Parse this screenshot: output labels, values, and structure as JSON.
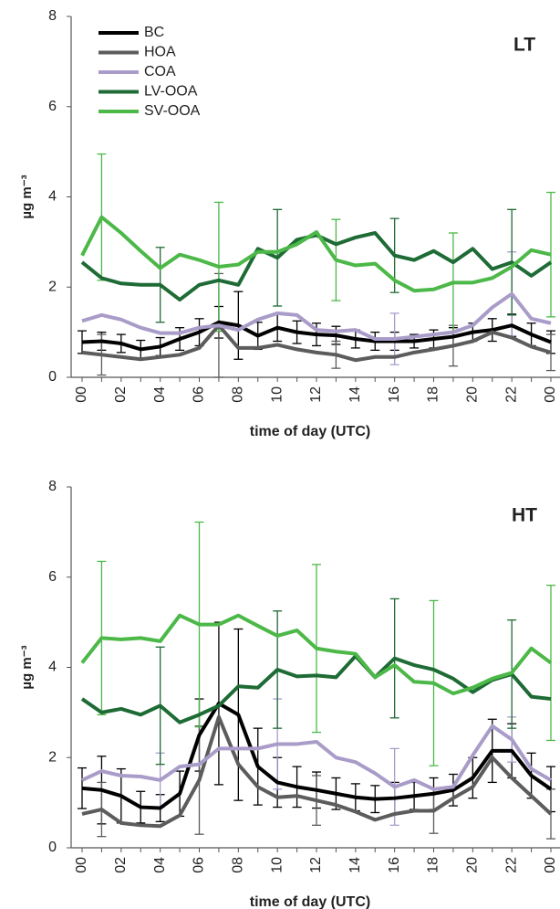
{
  "chart_data": [
    {
      "type": "line",
      "label": "LT",
      "xlabel": "time of day (UTC)",
      "ylabel": "µg m⁻³",
      "legend": true,
      "legend_position": "upper left",
      "categories": [
        "00",
        null,
        "02",
        null,
        "04",
        null,
        "06",
        null,
        "08",
        null,
        "10",
        null,
        "12",
        null,
        "14",
        null,
        "16",
        null,
        "18",
        null,
        "20",
        null,
        "22",
        null,
        "00"
      ],
      "ylim": [
        0,
        8
      ],
      "yticks": [
        0,
        2,
        4,
        6,
        8
      ],
      "series": [
        {
          "name": "BC",
          "color": "#000000",
          "values": [
            0.78,
            0.8,
            0.75,
            0.62,
            0.68,
            0.85,
            1.0,
            1.22,
            1.15,
            0.92,
            1.1,
            1.0,
            0.95,
            0.93,
            0.85,
            0.8,
            0.8,
            0.8,
            0.85,
            0.9,
            1.0,
            1.05,
            1.15,
            0.95,
            0.78
          ],
          "errors": [
            0.25,
            0.2,
            0.2,
            0.2,
            0.2,
            0.25,
            0.3,
            0.35,
            0.75,
            0.3,
            0.3,
            0.25,
            0.25,
            0.2,
            0.2,
            0.2,
            0.2,
            0.15,
            0.2,
            0.2,
            0.2,
            0.25,
            0.25,
            0.25,
            0.25
          ]
        },
        {
          "name": "HOA",
          "color": "#5c5c5c",
          "values": [
            0.55,
            0.5,
            0.45,
            0.4,
            0.45,
            0.5,
            0.65,
            1.15,
            0.65,
            0.65,
            0.72,
            0.62,
            0.55,
            0.5,
            0.38,
            0.45,
            0.45,
            0.55,
            0.62,
            0.7,
            0.8,
            1.0,
            0.88,
            0.68,
            0.55
          ],
          "errors": [
            null,
            0.45,
            null,
            null,
            null,
            null,
            null,
            1.15,
            null,
            null,
            null,
            null,
            null,
            0.3,
            null,
            null,
            null,
            null,
            null,
            0.45,
            null,
            null,
            null,
            null,
            0.4
          ]
        },
        {
          "name": "COA",
          "color": "#a99cc9",
          "values": [
            1.25,
            1.38,
            1.28,
            1.1,
            0.98,
            0.98,
            1.1,
            1.15,
            1.05,
            1.28,
            1.42,
            1.38,
            1.05,
            1.02,
            1.05,
            0.85,
            0.85,
            0.9,
            0.95,
            1.0,
            1.15,
            1.55,
            1.85,
            1.3,
            1.2
          ],
          "errors": [
            null,
            null,
            null,
            null,
            null,
            null,
            null,
            null,
            null,
            null,
            null,
            null,
            null,
            null,
            null,
            null,
            0.57,
            null,
            null,
            null,
            null,
            null,
            0.93,
            null,
            null
          ]
        },
        {
          "name": "LV-OOA",
          "color": "#1e6b35",
          "values": [
            2.55,
            2.2,
            2.08,
            2.05,
            2.05,
            1.72,
            2.05,
            2.15,
            2.05,
            2.85,
            2.65,
            3.05,
            3.15,
            2.95,
            3.1,
            3.2,
            2.7,
            2.6,
            2.8,
            2.55,
            2.85,
            2.4,
            2.55,
            2.25,
            2.55
          ],
          "errors": [
            null,
            null,
            null,
            null,
            0.83,
            null,
            null,
            null,
            null,
            null,
            1.07,
            null,
            null,
            null,
            null,
            null,
            0.82,
            null,
            null,
            null,
            null,
            null,
            1.17,
            null,
            null
          ]
        },
        {
          "name": "SV-OOA",
          "color": "#4cb848",
          "values": [
            2.7,
            3.55,
            3.2,
            2.8,
            2.42,
            2.72,
            2.6,
            2.45,
            2.5,
            2.78,
            2.78,
            2.95,
            3.22,
            2.6,
            2.48,
            2.52,
            2.15,
            1.92,
            1.95,
            2.1,
            2.1,
            2.2,
            2.45,
            2.82,
            2.72
          ],
          "errors": [
            null,
            1.4,
            null,
            null,
            null,
            null,
            null,
            1.43,
            null,
            null,
            null,
            null,
            null,
            0.9,
            null,
            null,
            null,
            null,
            null,
            1.1,
            null,
            null,
            null,
            null,
            1.38
          ]
        }
      ]
    },
    {
      "type": "line",
      "label": "HT",
      "xlabel": "time of day (UTC)",
      "ylabel": "µg m⁻³",
      "legend": false,
      "categories": [
        "00",
        null,
        "02",
        null,
        "04",
        null,
        "06",
        null,
        "08",
        null,
        "10",
        null,
        "12",
        null,
        "14",
        null,
        "16",
        null,
        "18",
        null,
        "20",
        null,
        "22",
        null,
        "00"
      ],
      "ylim": [
        0,
        8
      ],
      "yticks": [
        0,
        2,
        4,
        6,
        8
      ],
      "series": [
        {
          "name": "BC",
          "color": "#000000",
          "values": [
            1.32,
            1.28,
            1.15,
            0.9,
            0.88,
            1.2,
            2.5,
            3.2,
            2.95,
            1.8,
            1.45,
            1.35,
            1.28,
            1.2,
            1.12,
            1.08,
            1.1,
            1.15,
            1.2,
            1.28,
            1.55,
            2.15,
            2.15,
            1.6,
            1.3
          ],
          "errors": [
            0.45,
            0.75,
            0.6,
            0.35,
            0.3,
            0.5,
            0.8,
            1.8,
            1.9,
            0.85,
            0.55,
            0.45,
            0.4,
            0.35,
            0.3,
            0.3,
            0.35,
            0.3,
            0.35,
            0.35,
            0.45,
            0.7,
            0.6,
            0.5,
            0.5
          ]
        },
        {
          "name": "HOA",
          "color": "#5c5c5c",
          "values": [
            0.75,
            0.85,
            0.55,
            0.5,
            0.48,
            0.72,
            1.5,
            2.9,
            1.85,
            1.35,
            1.12,
            1.15,
            1.05,
            0.95,
            0.8,
            0.62,
            0.75,
            0.82,
            0.82,
            1.1,
            1.35,
            2.0,
            1.55,
            1.15,
            0.75
          ],
          "errors": [
            null,
            0.6,
            null,
            null,
            null,
            null,
            1.2,
            null,
            null,
            null,
            null,
            null,
            0.55,
            null,
            null,
            null,
            null,
            null,
            0.5,
            null,
            null,
            null,
            null,
            null,
            0.55
          ]
        },
        {
          "name": "COA",
          "color": "#a99cc9",
          "values": [
            1.5,
            1.7,
            1.6,
            1.58,
            1.5,
            1.8,
            1.85,
            2.2,
            2.2,
            2.2,
            2.3,
            2.3,
            2.35,
            2.0,
            1.9,
            1.65,
            1.35,
            1.5,
            1.3,
            1.35,
            2.05,
            2.7,
            2.4,
            1.75,
            1.5
          ],
          "errors": [
            null,
            null,
            null,
            null,
            0.6,
            null,
            null,
            null,
            null,
            null,
            1.0,
            null,
            null,
            null,
            null,
            null,
            0.85,
            null,
            null,
            null,
            null,
            null,
            0.5,
            null,
            null
          ]
        },
        {
          "name": "LV-OOA",
          "color": "#1e6b35",
          "values": [
            3.3,
            3.0,
            3.08,
            2.95,
            3.15,
            2.78,
            2.95,
            3.15,
            3.58,
            3.55,
            3.95,
            3.8,
            3.82,
            3.78,
            4.25,
            3.78,
            4.2,
            4.05,
            3.95,
            3.75,
            3.45,
            3.72,
            3.85,
            3.35,
            3.3
          ],
          "errors": [
            null,
            null,
            null,
            null,
            1.3,
            null,
            null,
            null,
            null,
            null,
            1.3,
            null,
            null,
            null,
            null,
            null,
            1.32,
            null,
            null,
            null,
            null,
            null,
            1.2,
            null,
            null
          ]
        },
        {
          "name": "SV-OOA",
          "color": "#4cb848",
          "values": [
            4.1,
            4.65,
            4.62,
            4.65,
            4.58,
            5.15,
            4.95,
            4.95,
            5.15,
            4.92,
            4.7,
            4.82,
            4.42,
            4.35,
            4.3,
            3.78,
            4.05,
            3.68,
            3.65,
            3.42,
            3.55,
            3.75,
            3.88,
            4.42,
            4.1
          ],
          "errors": [
            null,
            1.7,
            null,
            null,
            null,
            null,
            2.27,
            null,
            null,
            null,
            null,
            null,
            1.86,
            null,
            null,
            null,
            null,
            null,
            1.83,
            null,
            null,
            null,
            null,
            null,
            1.72
          ]
        }
      ]
    }
  ]
}
